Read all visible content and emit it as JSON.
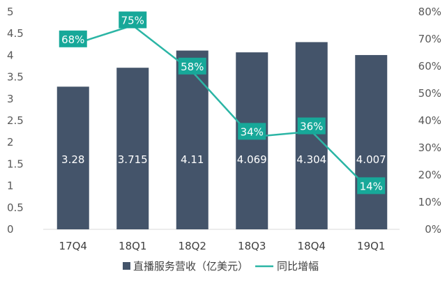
{
  "chart_data": {
    "type": "bar",
    "categories": [
      "17Q4",
      "18Q1",
      "18Q2",
      "18Q3",
      "18Q4",
      "19Q1"
    ],
    "series": [
      {
        "name": "直播服务营收（亿美元）",
        "type": "bar",
        "axis": "left",
        "values": [
          3.28,
          3.715,
          4.11,
          4.069,
          4.304,
          4.007
        ],
        "labels": [
          "3.28",
          "3.715",
          "4.11",
          "4.069",
          "4.304",
          "4.007"
        ],
        "color": "#44546a"
      },
      {
        "name": "同比增幅",
        "type": "line",
        "axis": "right",
        "values": [
          68,
          75,
          58,
          34,
          36,
          14
        ],
        "labels": [
          "68%",
          "75%",
          "58%",
          "34%",
          "36%",
          "14%"
        ],
        "color": "#2bb5a5"
      }
    ],
    "y_left": {
      "ylim": [
        0,
        5
      ],
      "ticks": [
        "0",
        "0.5",
        "1",
        "1.5",
        "2",
        "2.5",
        "3",
        "3.5",
        "4",
        "4.5",
        "5"
      ]
    },
    "y_right": {
      "ylim": [
        0,
        80
      ],
      "ticks": [
        "0%",
        "10%",
        "20%",
        "30%",
        "40%",
        "50%",
        "60%",
        "70%",
        "80%"
      ]
    },
    "grid": false,
    "legend": "bottom",
    "label_box_color": "#17a899"
  }
}
